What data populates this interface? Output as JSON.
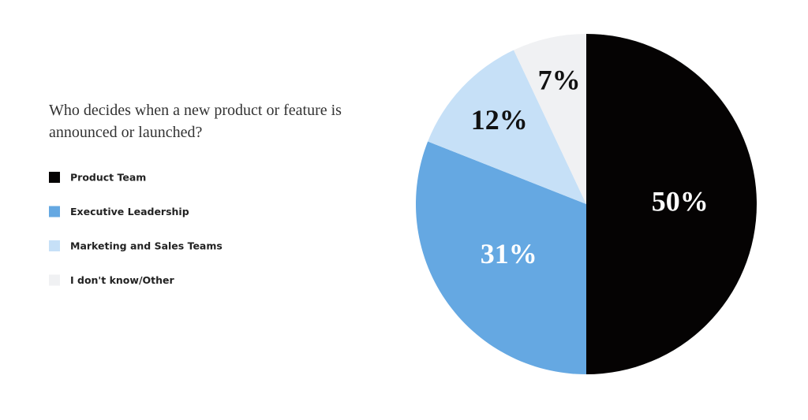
{
  "chart_data": {
    "type": "pie",
    "title": "Who decides when a new product or feature is announced or launched?",
    "categories": [
      "Product Team",
      "Executive Leadership",
      "Marketing and Sales Teams",
      "I don't know/Other"
    ],
    "values": [
      50,
      31,
      12,
      7
    ],
    "value_labels": [
      "50%",
      "31%",
      "12%",
      "7%"
    ],
    "colors": [
      "#050303",
      "#65a8e2",
      "#c6e0f7",
      "#f0f1f3"
    ],
    "label_colors": [
      "#ffffff",
      "#ffffff",
      "#111111",
      "#111111"
    ],
    "legend": "left"
  }
}
